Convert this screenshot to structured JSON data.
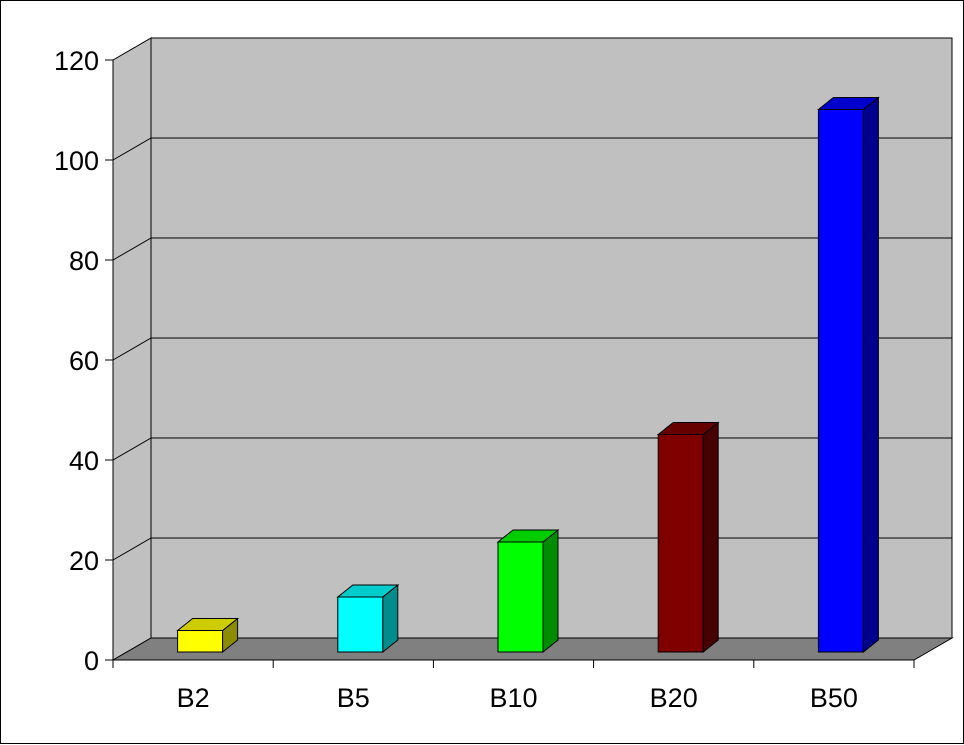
{
  "chart_data": {
    "type": "bar",
    "categories": [
      "B2",
      "B5",
      "B10",
      "B20",
      "B50"
    ],
    "values": [
      4.3,
      11,
      22,
      43.5,
      108.5
    ],
    "ylim": [
      0,
      120
    ],
    "yticks": [
      0,
      20,
      40,
      60,
      80,
      100,
      120
    ],
    "grid": true,
    "legend": "none",
    "bar_colors": [
      "#ffff00",
      "#00ffff",
      "#00ff00",
      "#800000",
      "#0000ff"
    ],
    "wall_color": "#c0c0c0",
    "floor_color": "#808080"
  }
}
